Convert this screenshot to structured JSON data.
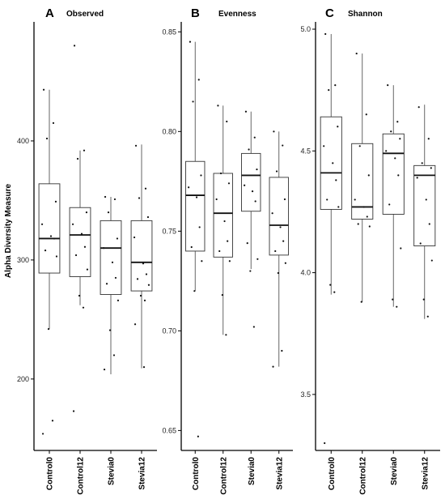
{
  "y_axis_label": "Alpha Diversity Measure",
  "chart_data": [
    {
      "type": "box",
      "letter": "A",
      "title": "Observed",
      "categories": [
        "Control0",
        "Control12",
        "Stevia0",
        "Stevia12"
      ],
      "ylim": [
        140,
        500
      ],
      "yticks": [
        200,
        300,
        400
      ],
      "ytick_labels": [
        "200",
        "300",
        "400"
      ],
      "boxes": [
        {
          "whisker_low": 242,
          "q1": 289,
          "median": 318,
          "q3": 364,
          "whisker_high": 443
        },
        {
          "whisker_low": 262,
          "q1": 286,
          "median": 321,
          "q3": 344,
          "whisker_high": 392
        },
        {
          "whisker_low": 204,
          "q1": 271,
          "median": 310,
          "q3": 333,
          "whisker_high": 353
        },
        {
          "whisker_low": 209,
          "q1": 274,
          "median": 298,
          "q3": 333,
          "whisker_high": 397
        }
      ],
      "points": [
        [
          443,
          415,
          402,
          349,
          330,
          320,
          318,
          308,
          303,
          242,
          165,
          154
        ],
        [
          480,
          392,
          385,
          340,
          330,
          322,
          311,
          304,
          292,
          270,
          260,
          173
        ],
        [
          353,
          351,
          340,
          318,
          310,
          298,
          285,
          280,
          266,
          241,
          220,
          208
        ],
        [
          396,
          360,
          352,
          336,
          319,
          297,
          288,
          284,
          279,
          270,
          266,
          246,
          210
        ]
      ]
    },
    {
      "type": "box",
      "letter": "B",
      "title": "Evenness",
      "categories": [
        "Control0",
        "Control12",
        "Stevia0",
        "Stevia12"
      ],
      "ylim": [
        0.64,
        0.855
      ],
      "yticks": [
        0.65,
        0.7,
        0.75,
        0.8,
        0.85
      ],
      "ytick_labels": [
        "0.65",
        "0.70",
        "0.75",
        "0.80",
        "0.85"
      ],
      "boxes": [
        {
          "whisker_low": 0.72,
          "q1": 0.74,
          "median": 0.768,
          "q3": 0.785,
          "whisker_high": 0.845
        },
        {
          "whisker_low": 0.698,
          "q1": 0.737,
          "median": 0.759,
          "q3": 0.779,
          "whisker_high": 0.813
        },
        {
          "whisker_low": 0.731,
          "q1": 0.76,
          "median": 0.778,
          "q3": 0.789,
          "whisker_high": 0.81
        },
        {
          "whisker_low": 0.682,
          "q1": 0.738,
          "median": 0.753,
          "q3": 0.777,
          "whisker_high": 0.8
        }
      ],
      "points": [
        [
          0.845,
          0.826,
          0.815,
          0.778,
          0.772,
          0.767,
          0.752,
          0.742,
          0.735,
          0.72,
          0.647
        ],
        [
          0.813,
          0.805,
          0.779,
          0.774,
          0.766,
          0.755,
          0.745,
          0.74,
          0.735,
          0.718,
          0.698
        ],
        [
          0.81,
          0.797,
          0.791,
          0.781,
          0.773,
          0.77,
          0.765,
          0.744,
          0.736,
          0.73,
          0.702
        ],
        [
          0.8,
          0.793,
          0.78,
          0.766,
          0.759,
          0.752,
          0.745,
          0.74,
          0.734,
          0.729,
          0.69,
          0.682
        ]
      ]
    },
    {
      "type": "box",
      "letter": "C",
      "title": "Shannon",
      "categories": [
        "Control0",
        "Control12",
        "Stevia0",
        "Stevia12"
      ],
      "ylim": [
        3.27,
        5.03
      ],
      "yticks": [
        3.5,
        4.0,
        4.5,
        5.0
      ],
      "ytick_labels": [
        "3.5",
        "4.0",
        "4.5",
        "5.0"
      ],
      "boxes": [
        {
          "whisker_low": 3.91,
          "q1": 4.26,
          "median": 4.41,
          "q3": 4.64,
          "whisker_high": 4.98
        },
        {
          "whisker_low": 3.88,
          "q1": 4.22,
          "median": 4.27,
          "q3": 4.53,
          "whisker_high": 4.9
        },
        {
          "whisker_low": 3.86,
          "q1": 4.24,
          "median": 4.49,
          "q3": 4.57,
          "whisker_high": 4.77
        },
        {
          "whisker_low": 3.81,
          "q1": 4.11,
          "median": 4.4,
          "q3": 4.44,
          "whisker_high": 4.69
        }
      ],
      "points": [
        [
          4.98,
          4.77,
          4.75,
          4.6,
          4.52,
          4.45,
          4.38,
          4.3,
          4.27,
          3.95,
          3.92,
          3.3
        ],
        [
          4.9,
          4.65,
          4.52,
          4.4,
          4.3,
          4.27,
          4.23,
          4.2,
          4.19,
          3.88
        ],
        [
          4.77,
          4.62,
          4.58,
          4.55,
          4.5,
          4.47,
          4.4,
          4.28,
          4.1,
          3.89,
          3.86
        ],
        [
          4.68,
          4.55,
          4.45,
          4.43,
          4.39,
          4.3,
          4.2,
          4.12,
          4.05,
          3.89,
          3.82
        ]
      ]
    }
  ]
}
